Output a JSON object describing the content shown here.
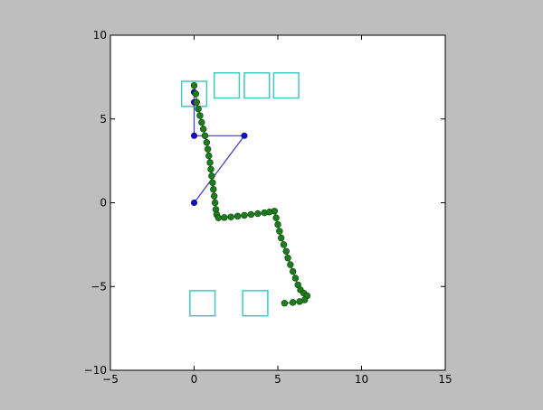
{
  "chart_data": {
    "type": "scatter",
    "xlim": [
      -5,
      15
    ],
    "ylim": [
      -10,
      10
    ],
    "x_ticks": [
      -5,
      0,
      5,
      10,
      15
    ],
    "y_ticks": [
      -10,
      -5,
      0,
      5,
      10
    ],
    "x_tick_labels": [
      "−5",
      "0",
      "5",
      "10",
      "15"
    ],
    "y_tick_labels": [
      "−10",
      "−5",
      "0",
      "5",
      "10"
    ],
    "grid": false,
    "colors": {
      "figure_bg": "#bfbebf",
      "axes_bg": "#ffffff",
      "path_line": "#3b3bb8",
      "path_marker": "#1111c8",
      "track_line": "#1f6e1f",
      "track_marker": "#1a7f1a",
      "obstacle": "#3fc9c0"
    },
    "series": [
      {
        "points": [
          [
            0,
            0
          ],
          [
            3,
            4
          ],
          [
            0,
            4
          ],
          [
            0,
            6
          ],
          [
            0,
            6.6
          ]
        ]
      },
      {
        "points": [
          [
            0,
            7.0
          ],
          [
            0.1,
            6.5
          ],
          [
            0.15,
            6.0
          ],
          [
            0.25,
            5.6
          ],
          [
            0.35,
            5.2
          ],
          [
            0.45,
            4.8
          ],
          [
            0.55,
            4.4
          ],
          [
            0.65,
            4.0
          ],
          [
            0.75,
            3.6
          ],
          [
            0.82,
            3.2
          ],
          [
            0.88,
            2.8
          ],
          [
            0.95,
            2.4
          ],
          [
            1.0,
            2.0
          ],
          [
            1.05,
            1.6
          ],
          [
            1.1,
            1.2
          ],
          [
            1.15,
            0.8
          ],
          [
            1.2,
            0.4
          ],
          [
            1.25,
            0.0
          ],
          [
            1.3,
            -0.4
          ],
          [
            1.35,
            -0.7
          ],
          [
            1.45,
            -0.9
          ],
          [
            1.8,
            -0.88
          ],
          [
            2.2,
            -0.85
          ],
          [
            2.6,
            -0.8
          ],
          [
            3.0,
            -0.75
          ],
          [
            3.4,
            -0.7
          ],
          [
            3.8,
            -0.65
          ],
          [
            4.2,
            -0.6
          ],
          [
            4.5,
            -0.55
          ],
          [
            4.8,
            -0.5
          ],
          [
            4.9,
            -0.9
          ],
          [
            5.0,
            -1.3
          ],
          [
            5.1,
            -1.7
          ],
          [
            5.2,
            -2.1
          ],
          [
            5.35,
            -2.5
          ],
          [
            5.5,
            -2.9
          ],
          [
            5.6,
            -3.3
          ],
          [
            5.75,
            -3.7
          ],
          [
            5.9,
            -4.1
          ],
          [
            6.05,
            -4.5
          ],
          [
            6.2,
            -4.9
          ],
          [
            6.35,
            -5.2
          ],
          [
            6.55,
            -5.4
          ],
          [
            6.75,
            -5.55
          ],
          [
            6.6,
            -5.8
          ],
          [
            6.3,
            -5.9
          ],
          [
            5.9,
            -5.95
          ],
          [
            5.4,
            -6.0
          ]
        ]
      }
    ],
    "obstacles": [
      {
        "x": -0.75,
        "y": 5.75,
        "w": 1.5,
        "h": 1.5
      },
      {
        "x": 1.2,
        "y": 6.25,
        "w": 1.5,
        "h": 1.5
      },
      {
        "x": 3.0,
        "y": 6.25,
        "w": 1.5,
        "h": 1.5
      },
      {
        "x": 4.75,
        "y": 6.25,
        "w": 1.5,
        "h": 1.5
      },
      {
        "x": -0.25,
        "y": -6.75,
        "w": 1.5,
        "h": 1.5
      },
      {
        "x": 2.9,
        "y": -6.75,
        "w": 1.5,
        "h": 1.5
      }
    ]
  }
}
